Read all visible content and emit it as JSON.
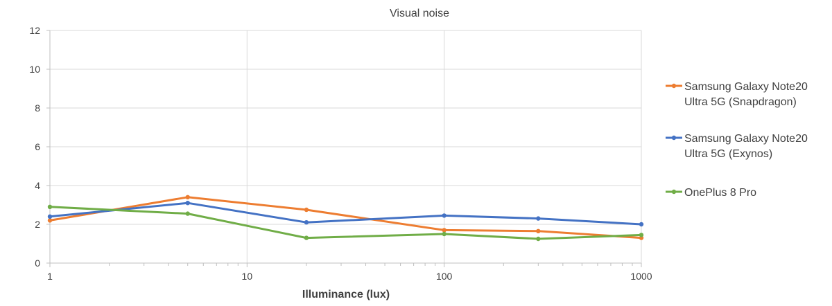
{
  "chart_data": {
    "type": "line",
    "title": "Visual noise",
    "xlabel": "Illuminance (lux)",
    "ylabel": "",
    "x_scale": "log",
    "xlim": [
      1,
      1000
    ],
    "ylim": [
      0,
      12
    ],
    "x_ticks": [
      1,
      10,
      100,
      1000
    ],
    "y_ticks": [
      0,
      2,
      4,
      6,
      8,
      10,
      12
    ],
    "x_tick_labels": [
      "1",
      "10",
      "100",
      "1000"
    ],
    "y_tick_labels": [
      "0",
      "2",
      "4",
      "6",
      "8",
      "10",
      "12"
    ],
    "grid": "vertical and horizontal",
    "legend_position": "right",
    "x": [
      1,
      5,
      20,
      100,
      300,
      1000
    ],
    "series": [
      {
        "name_lines": [
          "Samsung Galaxy Note20",
          "Ultra 5G (Snapdragon)"
        ],
        "color": "#ED7D31",
        "values": [
          2.2,
          3.4,
          2.75,
          1.7,
          1.65,
          1.3
        ]
      },
      {
        "name_lines": [
          "Samsung Galaxy Note20",
          "Ultra 5G (Exynos)"
        ],
        "color": "#4472C4",
        "values": [
          2.4,
          3.1,
          2.1,
          2.45,
          2.3,
          2.0
        ]
      },
      {
        "name_lines": [
          "OnePlus 8 Pro"
        ],
        "color": "#70AD47",
        "values": [
          2.9,
          2.55,
          1.3,
          1.5,
          1.25,
          1.45
        ]
      }
    ]
  }
}
